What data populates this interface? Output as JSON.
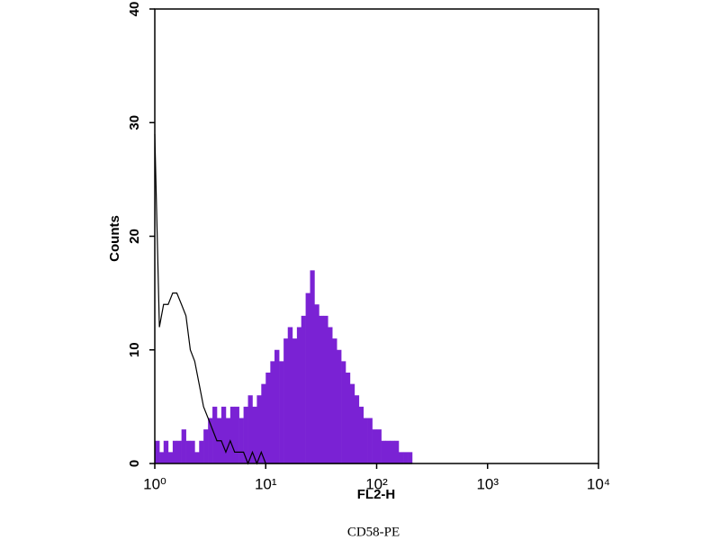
{
  "chart_data": {
    "type": "histogram",
    "xlabel": "FL2-H",
    "ylabel": "Counts",
    "caption": "CD58-PE",
    "x": [
      1.0,
      1.1,
      1.2,
      1.32,
      1.45,
      1.58,
      1.74,
      1.91,
      2.09,
      2.29,
      2.51,
      2.75,
      3.02,
      3.31,
      3.63,
      3.98,
      4.37,
      4.79,
      5.25,
      5.75,
      6.31,
      6.92,
      7.59,
      8.32,
      9.12,
      10.0,
      11.0,
      12.0,
      13.2,
      14.5,
      15.8,
      17.4,
      19.1,
      20.9,
      22.9,
      25.1,
      27.5,
      30.2,
      33.1,
      36.3,
      39.8,
      43.7,
      47.9,
      52.5,
      57.5,
      63.1,
      69.2,
      75.9,
      83.2,
      91.2,
      100,
      110,
      120,
      132,
      145,
      158,
      174,
      191,
      209
    ],
    "series": [
      {
        "color": "#7a22d4",
        "style": "filled",
        "values": [
          2,
          1,
          2,
          1,
          2,
          2,
          3,
          2,
          2,
          1,
          2,
          3,
          4,
          5,
          4,
          5,
          4,
          5,
          5,
          4,
          5,
          6,
          5,
          6,
          7,
          8,
          9,
          10,
          9,
          11,
          12,
          11,
          12,
          13,
          15,
          17,
          14,
          13,
          13,
          12,
          11,
          10,
          9,
          8,
          7,
          6,
          5,
          4,
          4,
          3,
          3,
          2,
          2,
          2,
          2,
          1,
          1,
          1,
          0
        ]
      },
      {
        "color": "#000000",
        "style": "outline",
        "values": [
          29,
          12,
          14,
          14,
          15,
          15,
          14,
          13,
          10,
          9,
          7,
          5,
          4,
          3,
          2,
          2,
          1,
          2,
          1,
          1,
          1,
          0,
          1,
          0,
          1,
          0,
          0,
          0,
          0,
          0,
          0,
          0,
          0,
          0,
          0,
          0,
          0,
          0,
          0,
          0,
          0,
          0,
          0,
          0,
          0,
          0,
          0,
          0,
          0,
          0,
          0,
          0,
          0,
          0,
          0,
          0,
          0,
          0,
          0
        ]
      }
    ],
    "xscale": "log",
    "xlim": [
      1,
      10000
    ],
    "xticks": [
      {
        "value": 1,
        "label": "10⁰"
      },
      {
        "value": 10,
        "label": "10¹"
      },
      {
        "value": 100,
        "label": "10²"
      },
      {
        "value": 1000,
        "label": "10³"
      },
      {
        "value": 10000,
        "label": "10⁴"
      }
    ],
    "ylim": [
      0,
      40
    ],
    "yticks": [
      0,
      10,
      20,
      30,
      40
    ]
  }
}
